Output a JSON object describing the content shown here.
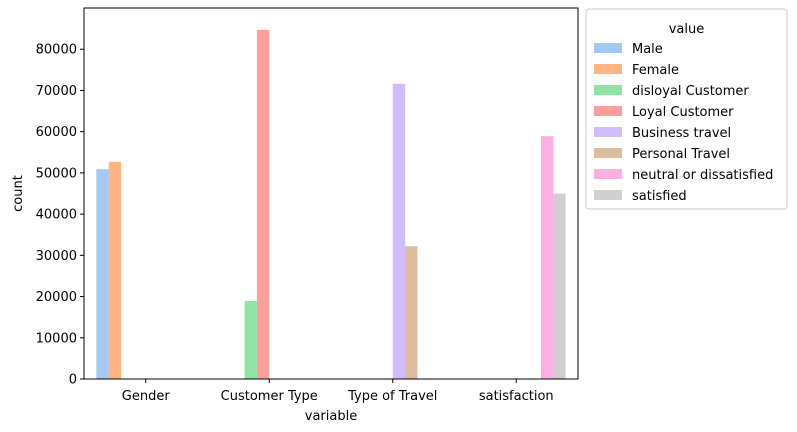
{
  "chart_data": {
    "type": "bar",
    "xlabel": "variable",
    "ylabel": "count",
    "ylim": [
      0,
      90000
    ],
    "categories": [
      "Gender",
      "Customer Type",
      "Type of Travel",
      "satisfaction"
    ],
    "yticks": [
      0,
      10000,
      20000,
      30000,
      40000,
      50000,
      60000,
      70000,
      80000
    ],
    "legend": {
      "title": "value",
      "placement": "outside-right"
    },
    "grid": false,
    "series": [
      {
        "name": "Male",
        "color": "#a1c9f4",
        "values": [
          50900,
          0,
          0,
          0
        ]
      },
      {
        "name": "Female",
        "color": "#ffb482",
        "values": [
          52700,
          0,
          0,
          0
        ]
      },
      {
        "name": "disloyal Customer",
        "color": "#8de5a1",
        "values": [
          0,
          18900,
          0,
          0
        ]
      },
      {
        "name": "Loyal Customer",
        "color": "#ff9f9b",
        "values": [
          0,
          84700,
          0,
          0
        ]
      },
      {
        "name": "Business travel",
        "color": "#d0bbff",
        "values": [
          0,
          0,
          71600,
          0
        ]
      },
      {
        "name": "Personal Travel",
        "color": "#debb9b",
        "values": [
          0,
          0,
          32200,
          0
        ]
      },
      {
        "name": "neutral or dissatisfied",
        "color": "#fab0e4",
        "values": [
          0,
          0,
          0,
          58900
        ]
      },
      {
        "name": "satisfied",
        "color": "#cfcfcf",
        "values": [
          0,
          0,
          0,
          45000
        ]
      }
    ]
  }
}
